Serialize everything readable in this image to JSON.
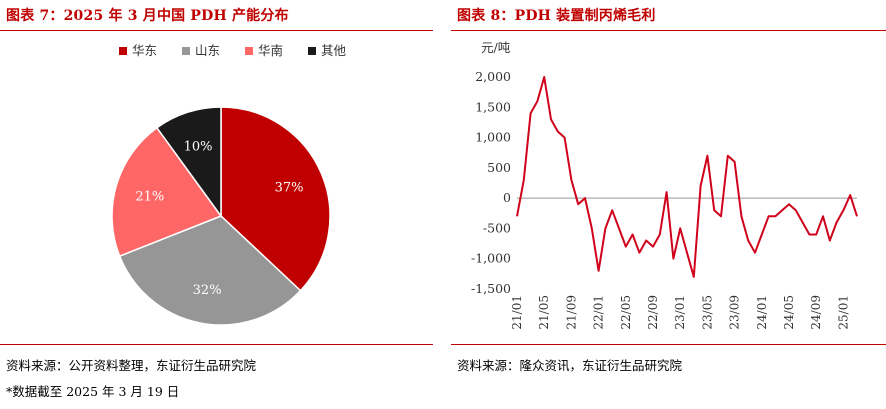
{
  "left": {
    "title": "图表 7：2025 年 3 月中国 PDH 产能分布",
    "source": "资料来源：公开资料整理，东证衍生品研究院",
    "note": "*数据截至 2025 年 3 月 19 日"
  },
  "right": {
    "title": "图表 8：PDH 装置制丙烯毛利",
    "source": "资料来源：隆众资讯，东证衍生品研究院"
  },
  "colors": {
    "accent": "#c00000",
    "east": "#c00000",
    "shandong": "#969696",
    "south": "#ff6666",
    "other": "#1a1a1a",
    "line": "#d0021b"
  },
  "chart_data": [
    {
      "type": "pie",
      "legend_position": "top",
      "labels": [
        "华东",
        "山东",
        "华南",
        "其他"
      ],
      "values": [
        37,
        32,
        21,
        10
      ],
      "value_labels": [
        "37%",
        "32%",
        "21%",
        "10%"
      ],
      "colors": [
        "#c00000",
        "#969696",
        "#ff6666",
        "#1a1a1a"
      ]
    },
    {
      "type": "line",
      "ylabel": "元/吨",
      "ylim": [
        -1500,
        2000
      ],
      "yticks": [
        -1500,
        -1000,
        -500,
        0,
        500,
        1000,
        1500,
        2000
      ],
      "ytick_labels": [
        "-1,500",
        "-1,000",
        "-500",
        "0",
        "500",
        "1,000",
        "1,500",
        "2,000"
      ],
      "xtick_labels": [
        "21/01",
        "21/05",
        "21/09",
        "22/01",
        "22/05",
        "22/09",
        "23/01",
        "23/05",
        "23/09",
        "24/01",
        "24/05",
        "24/09",
        "25/01"
      ],
      "grid": false,
      "x": [
        "21/01",
        "21/02",
        "21/03",
        "21/04",
        "21/05",
        "21/06",
        "21/07",
        "21/08",
        "21/09",
        "21/10",
        "21/11",
        "21/12",
        "22/01",
        "22/02",
        "22/03",
        "22/04",
        "22/05",
        "22/06",
        "22/07",
        "22/08",
        "22/09",
        "22/10",
        "22/11",
        "22/12",
        "23/01",
        "23/02",
        "23/03",
        "23/04",
        "23/05",
        "23/06",
        "23/07",
        "23/08",
        "23/09",
        "23/10",
        "23/11",
        "23/12",
        "24/01",
        "24/02",
        "24/03",
        "24/04",
        "24/05",
        "24/06",
        "24/07",
        "24/08",
        "24/09",
        "24/10",
        "24/11",
        "24/12",
        "25/01",
        "25/02",
        "25/03"
      ],
      "y": [
        -300,
        300,
        1400,
        1600,
        2000,
        1300,
        1100,
        1000,
        300,
        -100,
        0,
        -500,
        -1200,
        -500,
        -200,
        -500,
        -800,
        -600,
        -900,
        -700,
        -800,
        -600,
        100,
        -1000,
        -500,
        -900,
        -1300,
        200,
        700,
        -200,
        -300,
        700,
        600,
        -300,
        -700,
        -900,
        -600,
        -300,
        -300,
        -200,
        -100,
        -200,
        -400,
        -600,
        -600,
        -300,
        -700,
        -400,
        -200,
        50,
        -300
      ]
    }
  ]
}
